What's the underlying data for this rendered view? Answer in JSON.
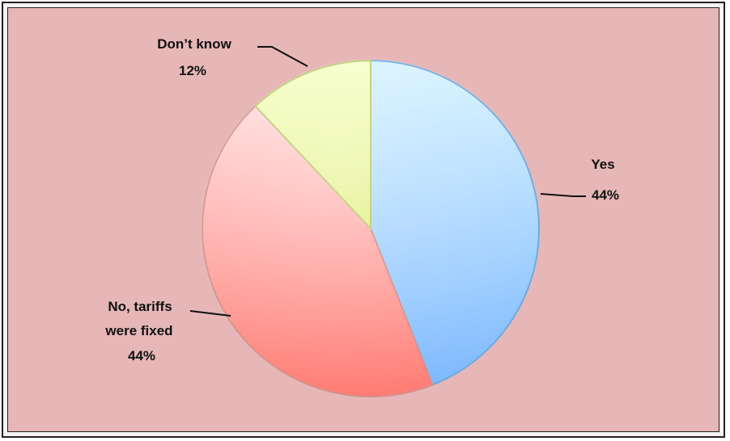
{
  "chart_data": {
    "type": "pie",
    "title": "",
    "slices": [
      {
        "label": "Yes",
        "value": 44,
        "value_label": "44%",
        "color": "#8ec6ff"
      },
      {
        "label": "No, tariffs were fixed",
        "value": 44,
        "value_label": "44%",
        "color": "#ff9a96"
      },
      {
        "label": "Don’t know",
        "value": 12,
        "value_label": "12%",
        "color": "#e9f6a8"
      }
    ],
    "label_lines": {
      "yes": [
        "Yes",
        "44%"
      ],
      "no": [
        "No, tariffs",
        "were fixed",
        "44%"
      ],
      "dontknow": [
        "Don’t know",
        "12%"
      ]
    },
    "background_color": "#e6b7b6"
  }
}
